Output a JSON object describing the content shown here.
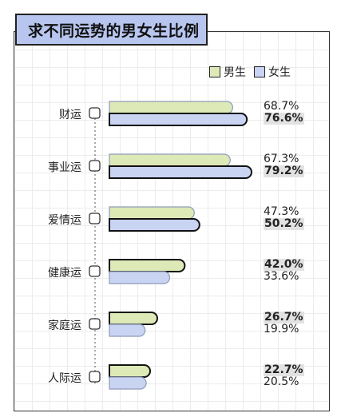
{
  "title": "求不同运势的男女生比例",
  "legend": {
    "male": "男生",
    "female": "女生"
  },
  "colors": {
    "male": "#dde9b6",
    "female": "#c9d3f2",
    "title_bg": "#b8c6ef",
    "highlight": "#e2e2e2"
  },
  "chart_data": {
    "type": "bar",
    "orientation": "horizontal",
    "categories": [
      "财运",
      "事业运",
      "爱情运",
      "健康运",
      "家庭运",
      "人际运"
    ],
    "series": [
      {
        "name": "男生",
        "values": [
          68.7,
          67.3,
          47.3,
          42.0,
          26.7,
          22.7
        ],
        "labels": [
          "68.7%",
          "67.3%",
          "47.3%",
          "42.0%",
          "26.7%",
          "22.7%"
        ]
      },
      {
        "name": "女生",
        "values": [
          76.6,
          79.2,
          50.2,
          33.6,
          19.9,
          20.5
        ],
        "labels": [
          "76.6%",
          "79.2%",
          "50.2%",
          "33.6%",
          "19.9%",
          "20.5%"
        ]
      }
    ],
    "highlight_larger": true,
    "grid": true
  }
}
